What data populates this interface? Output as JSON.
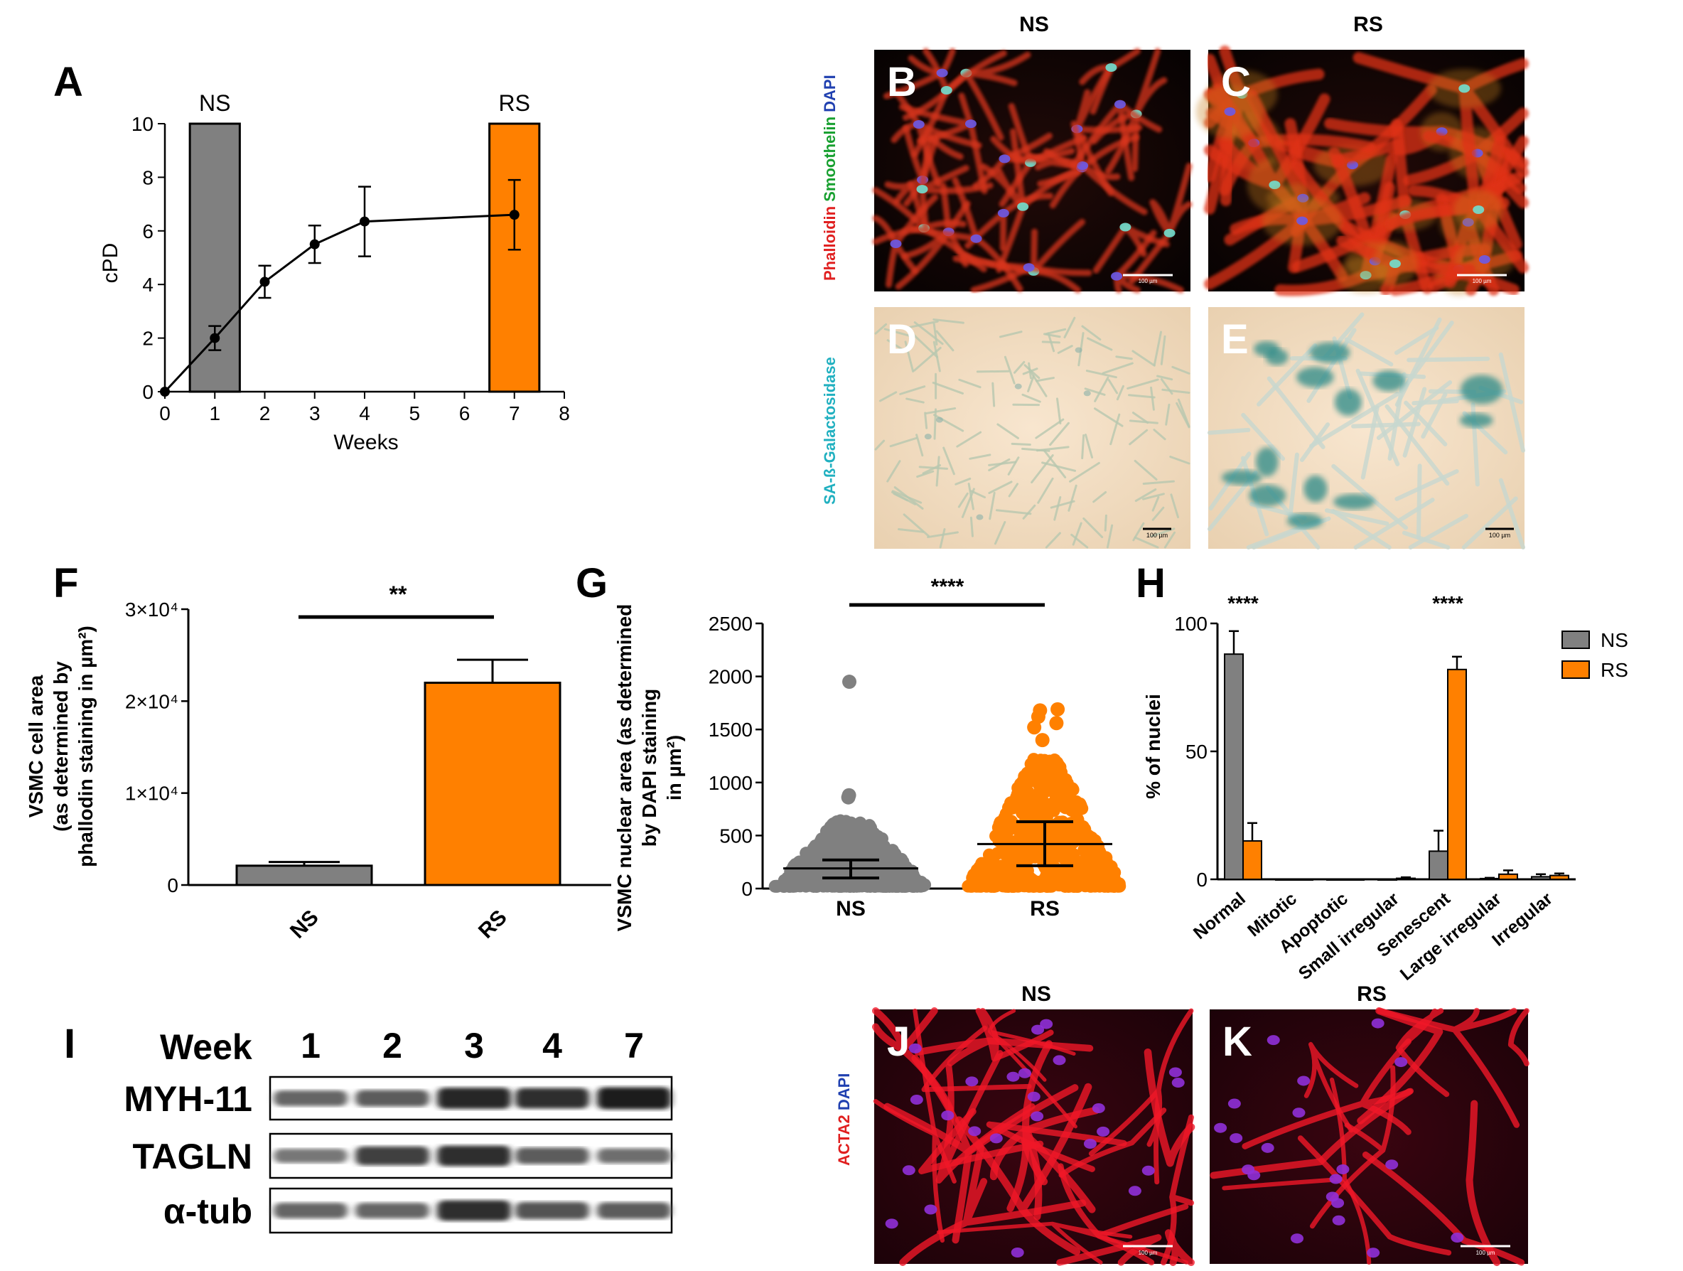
{
  "colors": {
    "ns": "#808080",
    "rs": "#ff8000",
    "text": "#000000"
  },
  "panel_A": {
    "letter": "A",
    "chart_data": {
      "type": "bar",
      "xlabel": "Weeks",
      "ylabel": "cPD",
      "xlim": [
        0,
        8
      ],
      "ylim": [
        0,
        10
      ],
      "x_ticks": [
        "0",
        "1",
        "2",
        "3",
        "4",
        "5",
        "6",
        "7",
        "8"
      ],
      "y_ticks": [
        "0",
        "2",
        "4",
        "6",
        "8",
        "10"
      ],
      "bars": [
        {
          "label": "NS",
          "x": 1,
          "value": 10,
          "color": "#808080"
        },
        {
          "label": "RS",
          "x": 7,
          "value": 10,
          "color": "#ff8000"
        }
      ],
      "series": [
        {
          "x": [
            0,
            1,
            2,
            3,
            4,
            7
          ],
          "y": [
            0,
            2.0,
            4.1,
            5.5,
            6.35,
            6.6
          ],
          "err": [
            0,
            0.45,
            0.6,
            0.7,
            1.3,
            1.3
          ]
        }
      ]
    }
  },
  "micrographs": {
    "top_headers": [
      "NS",
      "RS"
    ],
    "bottom_headers": [
      "NS",
      "RS"
    ],
    "stain_top": [
      {
        "text": "Phalloidin",
        "color": "#e02020"
      },
      {
        "text": " Smoothelin",
        "color": "#18a030"
      },
      {
        "text": " DAPI",
        "color": "#2040b0"
      }
    ],
    "stain_mid": {
      "text": "SA-ß-Galactosidase",
      "color": "#20b0c0"
    },
    "stain_bottom": [
      {
        "text": "ACTA2",
        "color": "#e02020"
      },
      {
        "text": " DAPI",
        "color": "#2040b0"
      }
    ],
    "letters": [
      "B",
      "C",
      "D",
      "E",
      "J",
      "K"
    ],
    "scale_labels": [
      "100 µm",
      "100 µm",
      "100 µm",
      "100 µm",
      "100 µm",
      "100 µm"
    ]
  },
  "panel_F": {
    "letter": "F",
    "chart_data": {
      "type": "bar",
      "ylabel_lines": [
        "VSMC cell area",
        "(as determined by",
        "phallodin staining in µm²)"
      ],
      "categories": [
        "NS",
        "RS"
      ],
      "values": [
        2100,
        22000
      ],
      "errors": [
        400,
        2500
      ],
      "ylim": [
        0,
        30000
      ],
      "y_ticks": [
        {
          "value": 0,
          "label": "0"
        },
        {
          "value": 10000,
          "label": "1×10⁴"
        },
        {
          "value": 20000,
          "label": "2×10⁴"
        },
        {
          "value": 30000,
          "label": "3×10⁴"
        }
      ],
      "significance": "**"
    }
  },
  "panel_G": {
    "letter": "G",
    "chart_data": {
      "type": "scatter",
      "ylabel_lines": [
        "VSMC nuclear area (as determined",
        "by DAPI staining",
        "in µm²)"
      ],
      "categories": [
        "NS",
        "RS"
      ],
      "ylim": [
        0,
        2500
      ],
      "y_ticks": [
        "0",
        "500",
        "1000",
        "1500",
        "2000",
        "2500"
      ],
      "series": [
        {
          "name": "NS",
          "mean": 190,
          "sd_low": 100,
          "sd_high": 270,
          "outliers": [
            860,
            880,
            1950
          ]
        },
        {
          "name": "RS",
          "mean": 420,
          "sd_low": 215,
          "sd_high": 630,
          "outliers": [
            1400,
            1520,
            1560,
            1620,
            1680,
            1690
          ]
        }
      ],
      "significance": "****"
    }
  },
  "panel_H": {
    "letter": "H",
    "chart_data": {
      "type": "bar",
      "ylabel": "% of nuclei",
      "ylim": [
        0,
        100
      ],
      "y_ticks": [
        "0",
        "50",
        "100"
      ],
      "categories": [
        "Normal",
        "Mitotic",
        "Apoptotic",
        "Small irregular",
        "Senescent",
        "Large irregular",
        "Irregular"
      ],
      "series": [
        {
          "name": "NS",
          "values": [
            88,
            0,
            0,
            0,
            11,
            0.3,
            1.0
          ],
          "errors": [
            9,
            0,
            0,
            0,
            8,
            0.3,
            1.0
          ]
        },
        {
          "name": "RS",
          "values": [
            15,
            0,
            0,
            0.4,
            82,
            2.0,
            1.5
          ],
          "errors": [
            7,
            0,
            0,
            0.4,
            5,
            1.5,
            0.8
          ]
        }
      ],
      "significance": [
        {
          "category": "Normal",
          "text": "****"
        },
        {
          "category": "Senescent",
          "text": "****"
        }
      ],
      "legend": [
        {
          "name": "NS"
        },
        {
          "name": "RS"
        }
      ],
      "legend_position": "top-right"
    }
  },
  "panel_I": {
    "letter": "I",
    "header": "Week",
    "weeks": [
      "1",
      "2",
      "3",
      "4",
      "7"
    ],
    "rows": [
      {
        "name": "MYH-11",
        "intensities": [
          0.55,
          0.6,
          0.9,
          0.85,
          0.95
        ]
      },
      {
        "name": "TAGLN",
        "intensities": [
          0.45,
          0.75,
          0.85,
          0.6,
          0.5
        ]
      },
      {
        "name": "α-tub",
        "intensities": [
          0.55,
          0.55,
          0.85,
          0.65,
          0.6
        ]
      }
    ]
  }
}
